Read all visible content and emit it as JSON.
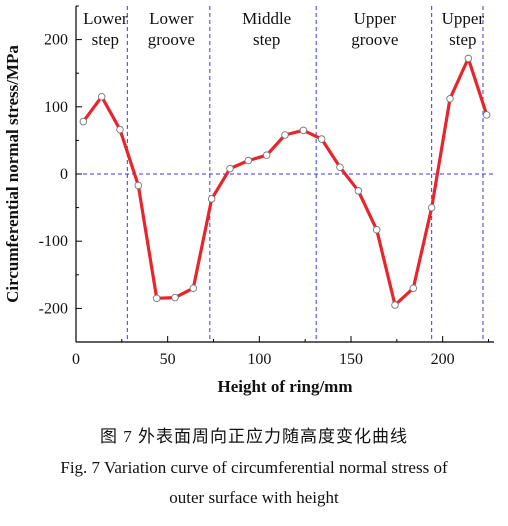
{
  "chart_data": {
    "type": "line",
    "title": "",
    "xlabel": "Height of ring/mm",
    "ylabel": "Circumferential normal stress/MPa",
    "xlim": [
      0,
      228
    ],
    "ylim": [
      -250,
      250
    ],
    "xticks": [
      0,
      50,
      100,
      150,
      200
    ],
    "yticks": [
      -200,
      -100,
      0,
      100,
      200
    ],
    "grid": false,
    "zero_line": 0,
    "region_boundaries": [
      28,
      73,
      131,
      194,
      222
    ],
    "regions": [
      {
        "label_line1": "Lower",
        "label_line2": "step",
        "x_center": 16
      },
      {
        "label_line1": "Lower",
        "label_line2": "groove",
        "x_center": 52
      },
      {
        "label_line1": "Middle",
        "label_line2": "step",
        "x_center": 104
      },
      {
        "label_line1": "Upper",
        "label_line2": "groove",
        "x_center": 163
      },
      {
        "label_line1": "Upper",
        "label_line2": "step",
        "x_center": 211
      }
    ],
    "series": [
      {
        "color": "#e8252b",
        "marker_color": "#ffffff",
        "x": [
          4,
          14,
          24,
          34,
          44,
          54,
          64,
          74,
          84,
          94,
          104,
          114,
          124,
          134,
          144,
          154,
          164,
          174,
          184,
          194,
          204,
          214,
          224
        ],
        "y": [
          78,
          115,
          66,
          -17,
          -185,
          -184,
          -170,
          -37,
          8,
          20,
          28,
          58,
          65,
          52,
          10,
          -25,
          -83,
          -195,
          -170,
          -50,
          112,
          172,
          88
        ]
      }
    ]
  },
  "caption": {
    "cn": "图 7    外表面周向正应力随高度变化曲线",
    "en_line1": "Fig. 7    Variation curve of circumferential normal stress of",
    "en_line2": "outer surface with height"
  }
}
